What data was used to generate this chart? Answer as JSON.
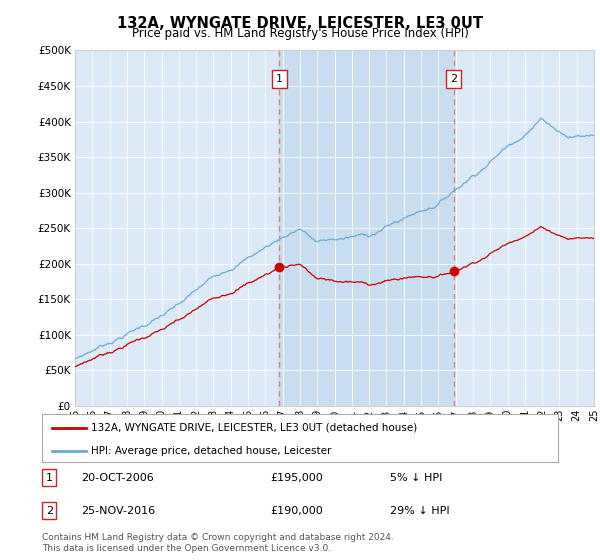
{
  "title": "132A, WYNGATE DRIVE, LEICESTER, LE3 0UT",
  "subtitle": "Price paid vs. HM Land Registry's House Price Index (HPI)",
  "legend_line1": "132A, WYNGATE DRIVE, LEICESTER, LE3 0UT (detached house)",
  "legend_line2": "HPI: Average price, detached house, Leicester",
  "annotation1_label": "1",
  "annotation1_date": "20-OCT-2006",
  "annotation1_price": "£195,000",
  "annotation1_hpi": "5% ↓ HPI",
  "annotation2_label": "2",
  "annotation2_date": "25-NOV-2016",
  "annotation2_price": "£190,000",
  "annotation2_hpi": "29% ↓ HPI",
  "footer": "Contains HM Land Registry data © Crown copyright and database right 2024.\nThis data is licensed under the Open Government Licence v3.0.",
  "plot_bg": "#dce9f7",
  "owned_bg": "#c8ddf0",
  "line_color_hpi": "#6aaad4",
  "line_color_price": "#cc0000",
  "vline_color": "#e08080",
  "drop_line_color": "#cc0000",
  "ylim": [
    0,
    500000
  ],
  "yticks": [
    0,
    50000,
    100000,
    150000,
    200000,
    250000,
    300000,
    350000,
    400000,
    450000,
    500000
  ],
  "ytick_labels": [
    "£0",
    "£50K",
    "£100K",
    "£150K",
    "£200K",
    "£250K",
    "£300K",
    "£350K",
    "£400K",
    "£450K",
    "£500K"
  ],
  "sale1_x": 2006.8,
  "sale1_y": 195000,
  "sale2_x": 2016.9,
  "sale2_y": 190000,
  "xmin": 1995,
  "xmax": 2025
}
